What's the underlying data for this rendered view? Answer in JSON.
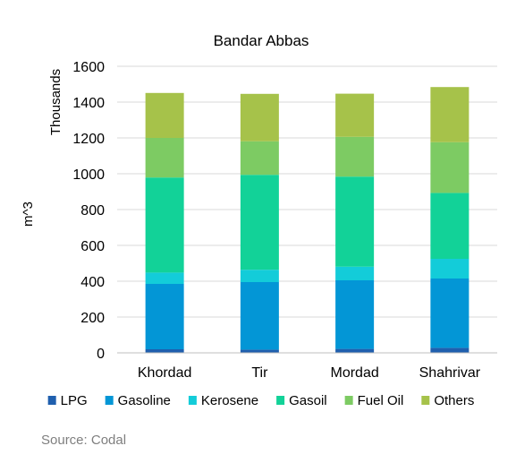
{
  "chart_data": {
    "type": "bar",
    "stacked": true,
    "title": "Bandar Abbas",
    "ylabel": "m^3",
    "yunit_label": "Thousands",
    "xlabel": "",
    "categories": [
      "Khordad",
      "Tir",
      "Mordad",
      "Shahrivar"
    ],
    "ylim": [
      0,
      1600
    ],
    "yticks": [
      0,
      200,
      400,
      600,
      800,
      1000,
      1200,
      1400,
      1600
    ],
    "grid": true,
    "legend_position": "bottom",
    "series": [
      {
        "name": "LPG",
        "color": "#1F5FAE",
        "values": [
          20,
          18,
          22,
          28
        ]
      },
      {
        "name": "Gasoline",
        "color": "#0396D6",
        "values": [
          365,
          377,
          383,
          387
        ]
      },
      {
        "name": "Kerosene",
        "color": "#13CCD9",
        "values": [
          63,
          69,
          76,
          110
        ]
      },
      {
        "name": "Gasoil",
        "color": "#12D298",
        "values": [
          531,
          530,
          503,
          368
        ]
      },
      {
        "name": "Fuel Oil",
        "color": "#7DCB63",
        "values": [
          221,
          187,
          222,
          283
        ]
      },
      {
        "name": "Others",
        "color": "#A6C24A",
        "values": [
          251,
          265,
          241,
          308
        ]
      }
    ]
  },
  "footer": {
    "source": "Source: Codal"
  }
}
